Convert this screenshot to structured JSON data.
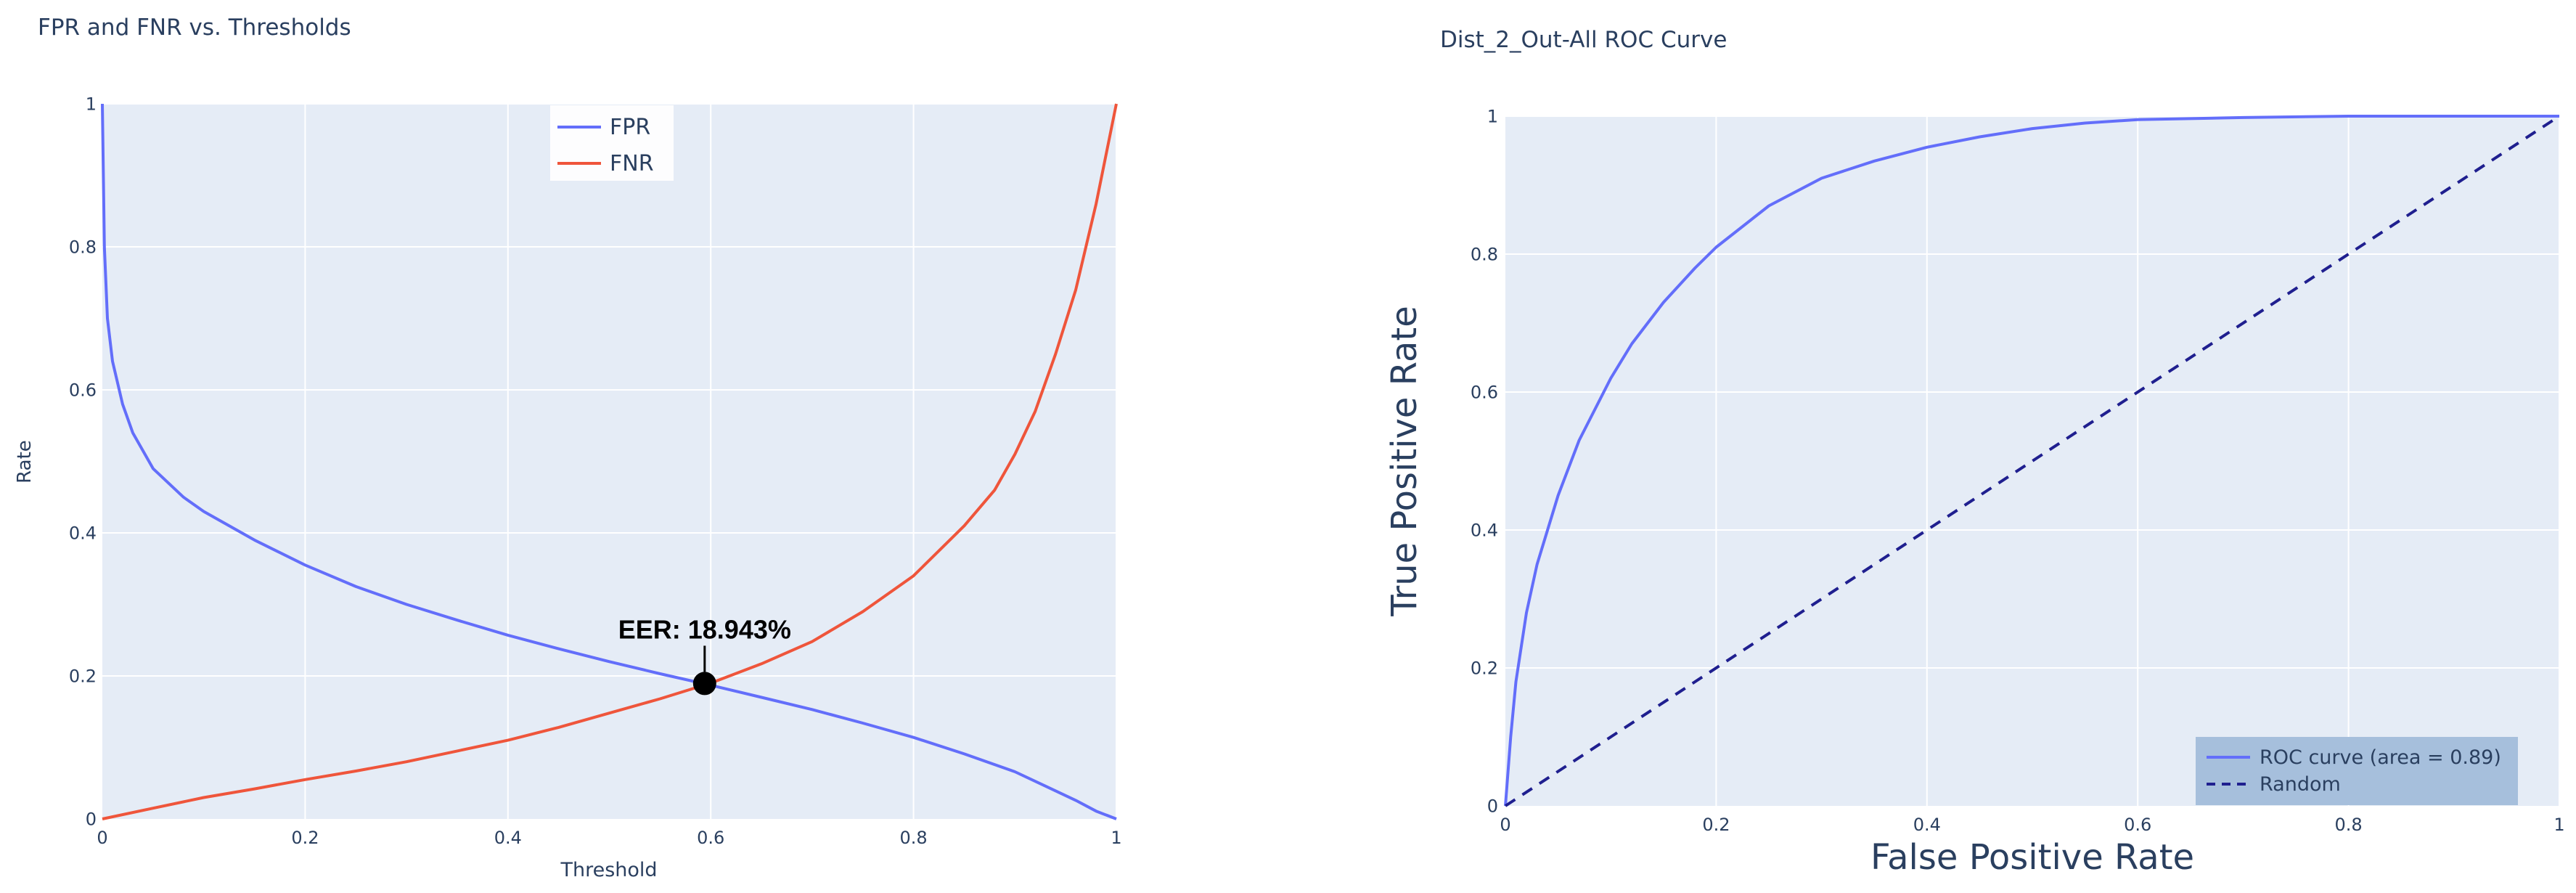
{
  "chart_data": [
    {
      "type": "line",
      "title": "FPR and FNR vs. Thresholds",
      "xlabel": "Threshold",
      "ylabel": "Rate",
      "xlim": [
        0,
        1
      ],
      "ylim": [
        0,
        1
      ],
      "xticks": [
        0,
        0.2,
        0.4,
        0.6,
        0.8,
        1
      ],
      "yticks": [
        0,
        0.2,
        0.4,
        0.6,
        0.8,
        1
      ],
      "grid": true,
      "legend_position": "top-center",
      "series": [
        {
          "name": "FPR",
          "color": "#636efa",
          "x": [
            0,
            0.002,
            0.005,
            0.01,
            0.02,
            0.03,
            0.05,
            0.08,
            0.1,
            0.15,
            0.2,
            0.25,
            0.3,
            0.35,
            0.4,
            0.45,
            0.5,
            0.55,
            0.6,
            0.65,
            0.7,
            0.75,
            0.8,
            0.85,
            0.9,
            0.93,
            0.96,
            0.98,
            1.0
          ],
          "values": [
            1.0,
            0.8,
            0.7,
            0.64,
            0.58,
            0.54,
            0.49,
            0.45,
            0.43,
            0.39,
            0.355,
            0.325,
            0.3,
            0.278,
            0.257,
            0.238,
            0.22,
            0.203,
            0.187,
            0.17,
            0.153,
            0.134,
            0.114,
            0.091,
            0.066,
            0.046,
            0.026,
            0.011,
            0.0
          ]
        },
        {
          "name": "FNR",
          "color": "#ef553b",
          "x": [
            0,
            0.05,
            0.1,
            0.15,
            0.2,
            0.25,
            0.3,
            0.35,
            0.4,
            0.45,
            0.5,
            0.55,
            0.6,
            0.65,
            0.7,
            0.75,
            0.8,
            0.85,
            0.88,
            0.9,
            0.92,
            0.94,
            0.96,
            0.98,
            1.0
          ],
          "values": [
            0.0,
            0.015,
            0.03,
            0.042,
            0.055,
            0.067,
            0.08,
            0.095,
            0.11,
            0.128,
            0.148,
            0.168,
            0.19,
            0.217,
            0.248,
            0.29,
            0.34,
            0.41,
            0.46,
            0.51,
            0.57,
            0.65,
            0.74,
            0.86,
            1.0
          ]
        }
      ],
      "annotation": {
        "text": "EER: 18.943%",
        "x": 0.594,
        "y": 0.18943
      }
    },
    {
      "type": "line",
      "title": "Dist_2_Out-All ROC Curve",
      "xlabel": "False Positive Rate",
      "ylabel": "True Positive Rate",
      "xlim": [
        0,
        1
      ],
      "ylim": [
        0,
        1
      ],
      "xticks": [
        0,
        0.2,
        0.4,
        0.6,
        0.8,
        1
      ],
      "yticks": [
        0,
        0.2,
        0.4,
        0.6,
        0.8,
        1
      ],
      "grid": true,
      "legend_position": "bottom-right",
      "series": [
        {
          "name": "ROC curve (area = 0.89)",
          "color": "#636efa",
          "dash": "solid",
          "x": [
            0,
            0.005,
            0.01,
            0.02,
            0.03,
            0.05,
            0.07,
            0.1,
            0.12,
            0.15,
            0.18,
            0.2,
            0.25,
            0.3,
            0.35,
            0.4,
            0.45,
            0.5,
            0.55,
            0.6,
            0.7,
            0.8,
            0.9,
            1.0
          ],
          "values": [
            0,
            0.1,
            0.18,
            0.28,
            0.35,
            0.45,
            0.53,
            0.62,
            0.67,
            0.73,
            0.78,
            0.81,
            0.87,
            0.91,
            0.935,
            0.955,
            0.97,
            0.982,
            0.99,
            0.995,
            0.998,
            1.0,
            1.0,
            1.0
          ]
        },
        {
          "name": "Random",
          "color": "#1f1f8f",
          "dash": "dash",
          "x": [
            0,
            1
          ],
          "values": [
            0,
            1
          ]
        }
      ]
    }
  ]
}
